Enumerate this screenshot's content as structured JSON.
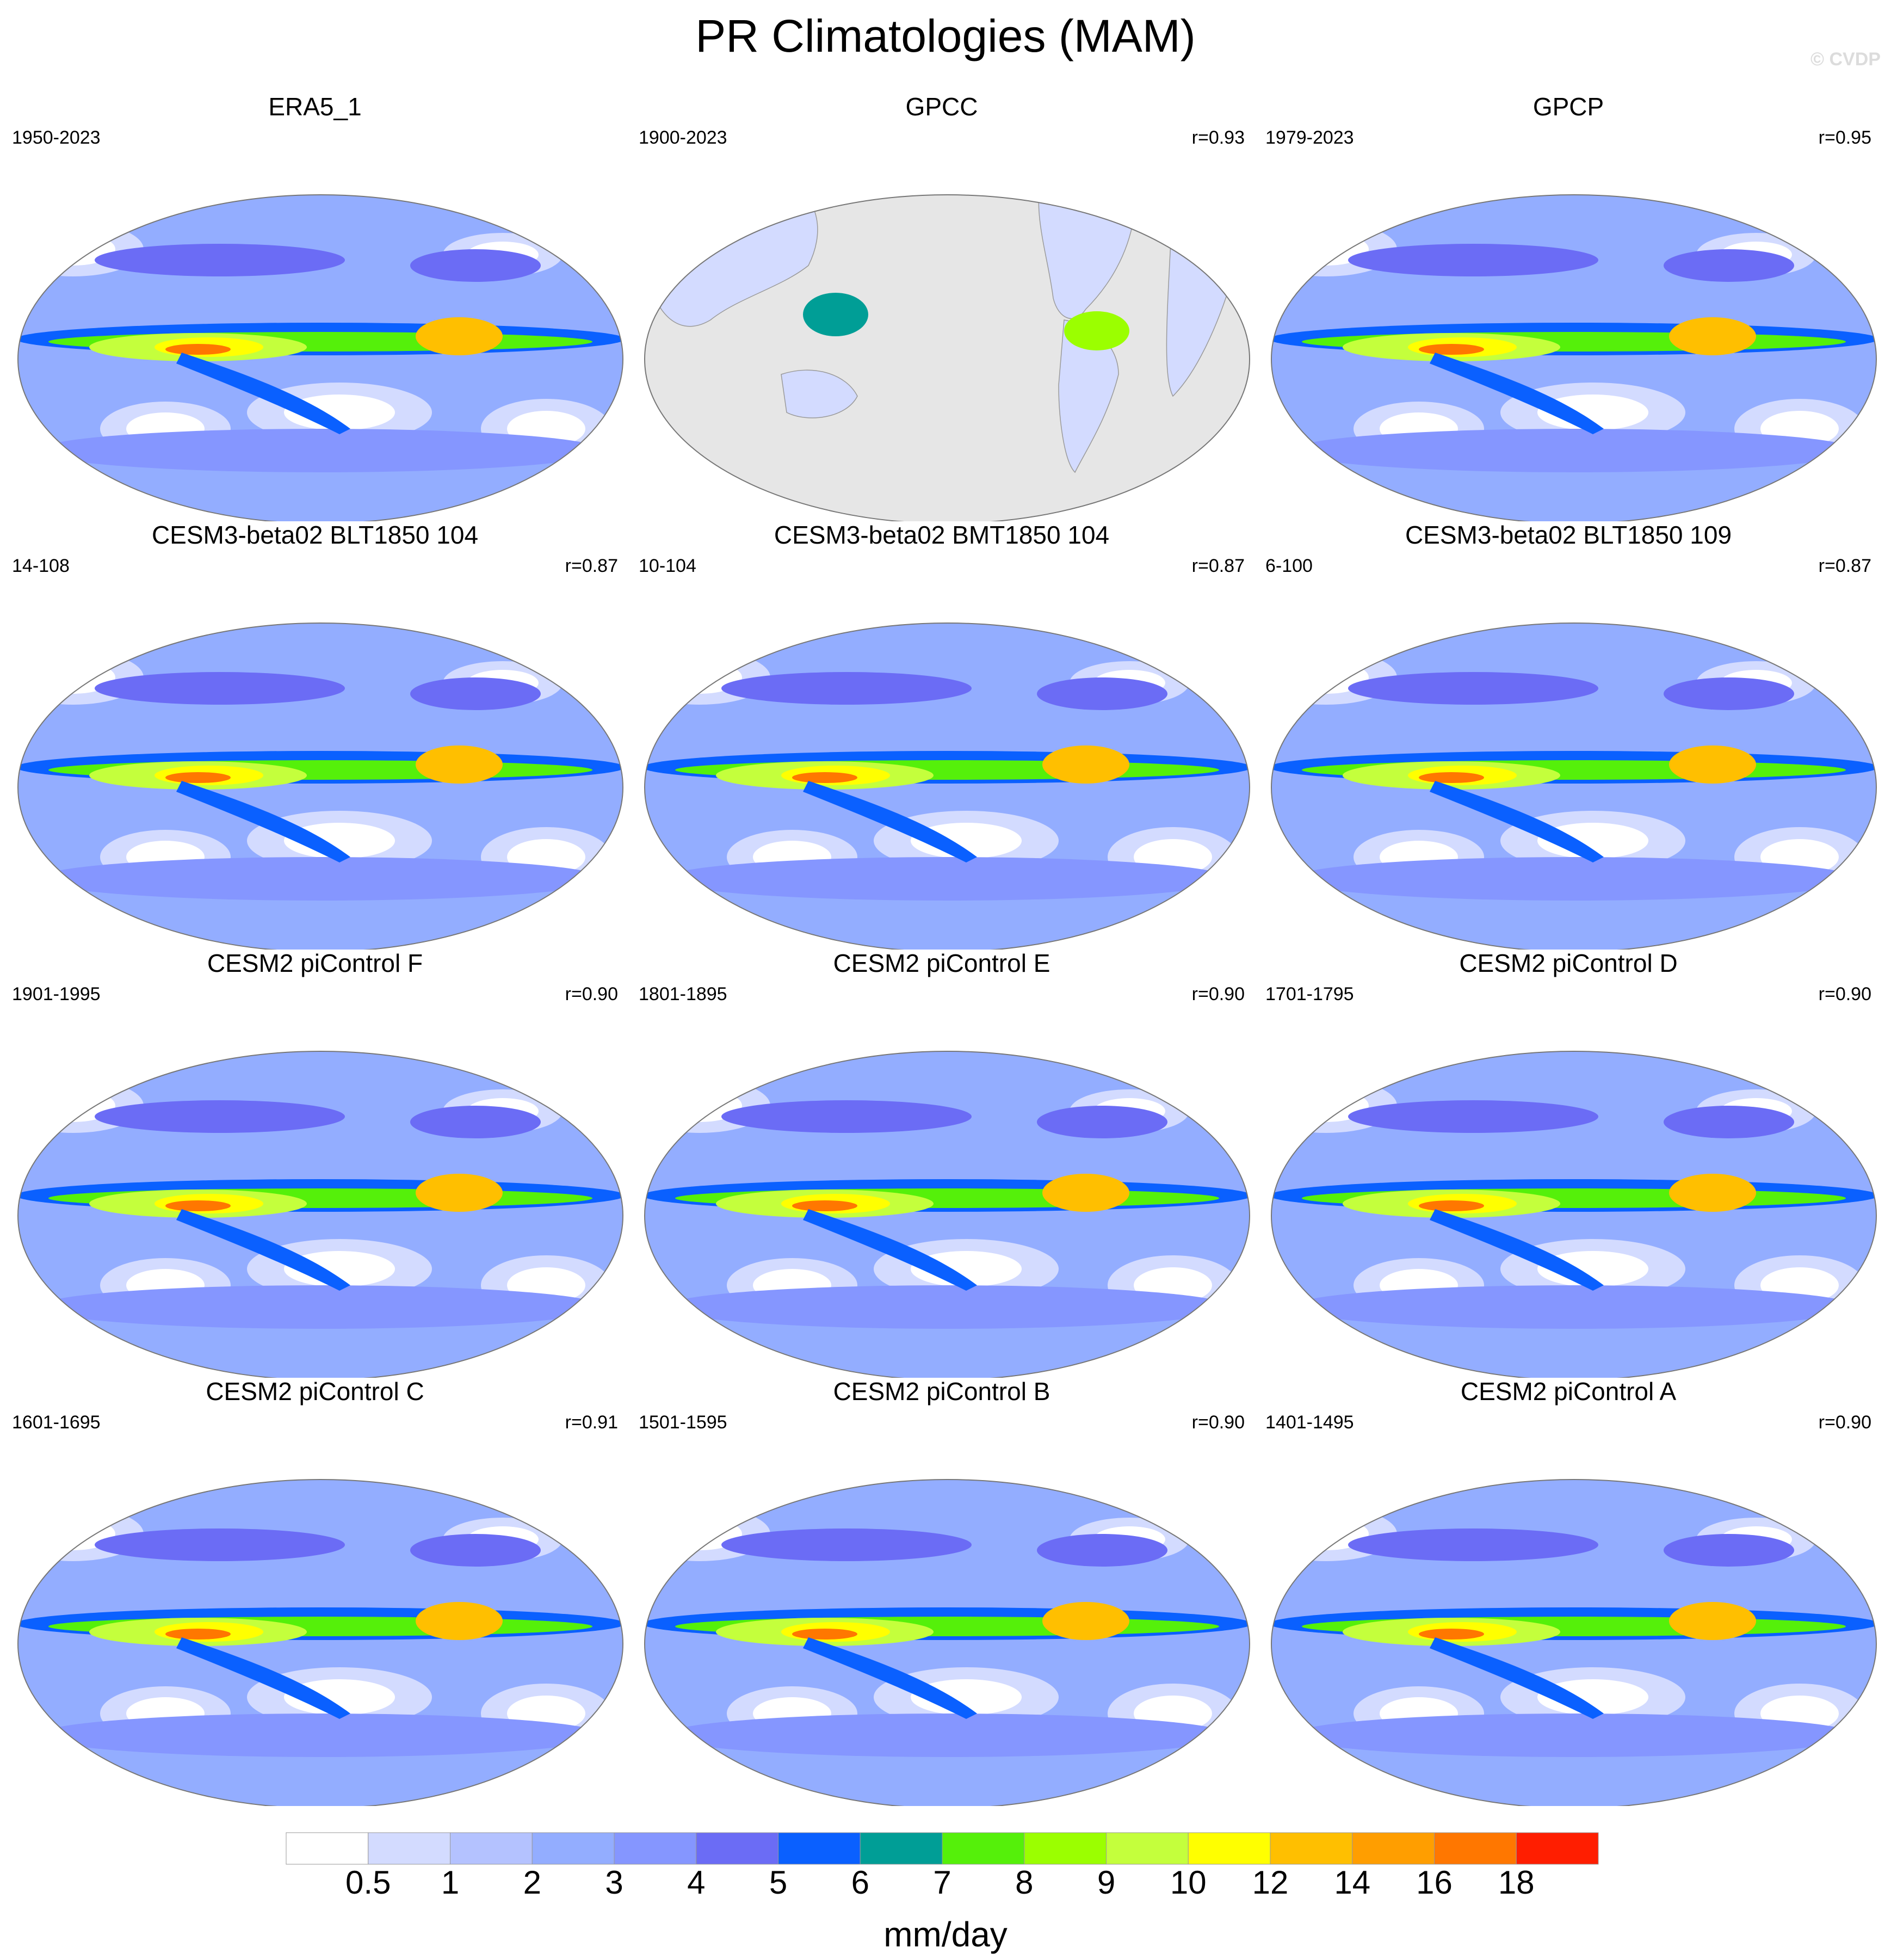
{
  "figure": {
    "title": "PR Climatologies (MAM)",
    "copyright": "© CVDP",
    "ocean_color": "#8f8ff9",
    "land_mask_color": "#e6e6e6"
  },
  "panels": [
    {
      "title": "ERA5_1",
      "years": "1950-2023",
      "corr": "",
      "land_only": false
    },
    {
      "title": "GPCC",
      "years": "1900-2023",
      "corr": "r=0.93",
      "land_only": true
    },
    {
      "title": "GPCP",
      "years": "1979-2023",
      "corr": "r=0.95",
      "land_only": false
    },
    {
      "title": "CESM3-beta02 BLT1850 104",
      "years": "14-108",
      "corr": "r=0.87",
      "land_only": false
    },
    {
      "title": "CESM3-beta02 BMT1850 104",
      "years": "10-104",
      "corr": "r=0.87",
      "land_only": false
    },
    {
      "title": "CESM3-beta02 BLT1850 109",
      "years": "6-100",
      "corr": "r=0.87",
      "land_only": false
    },
    {
      "title": "CESM2 piControl F",
      "years": "1901-1995",
      "corr": "r=0.90",
      "land_only": false
    },
    {
      "title": "CESM2 piControl E",
      "years": "1801-1895",
      "corr": "r=0.90",
      "land_only": false
    },
    {
      "title": "CESM2 piControl D",
      "years": "1701-1795",
      "corr": "r=0.90",
      "land_only": false
    },
    {
      "title": "CESM2 piControl C",
      "years": "1601-1695",
      "corr": "r=0.91",
      "land_only": false
    },
    {
      "title": "CESM2 piControl B",
      "years": "1501-1595",
      "corr": "r=0.90",
      "land_only": false
    },
    {
      "title": "CESM2 piControl A",
      "years": "1401-1495",
      "corr": "r=0.90",
      "land_only": false
    }
  ],
  "chart_data": {
    "type": "heatmap",
    "title": "PR Climatologies (MAM)",
    "colorbar": {
      "unit": "mm/day",
      "levels": [
        "0.5",
        "1",
        "2",
        "3",
        "4",
        "5",
        "6",
        "7",
        "8",
        "9",
        "10",
        "12",
        "14",
        "16",
        "18"
      ],
      "colors": [
        "#ffffff",
        "#d3dbff",
        "#b4c2ff",
        "#93adff",
        "#8596ff",
        "#6b6cf5",
        "#0a60ff",
        "#009e96",
        "#55f00a",
        "#9bff00",
        "#c4ff3c",
        "#ffff00",
        "#ffbf00",
        "#ff9e00",
        "#ff7700",
        "#ff1e00"
      ]
    }
  }
}
